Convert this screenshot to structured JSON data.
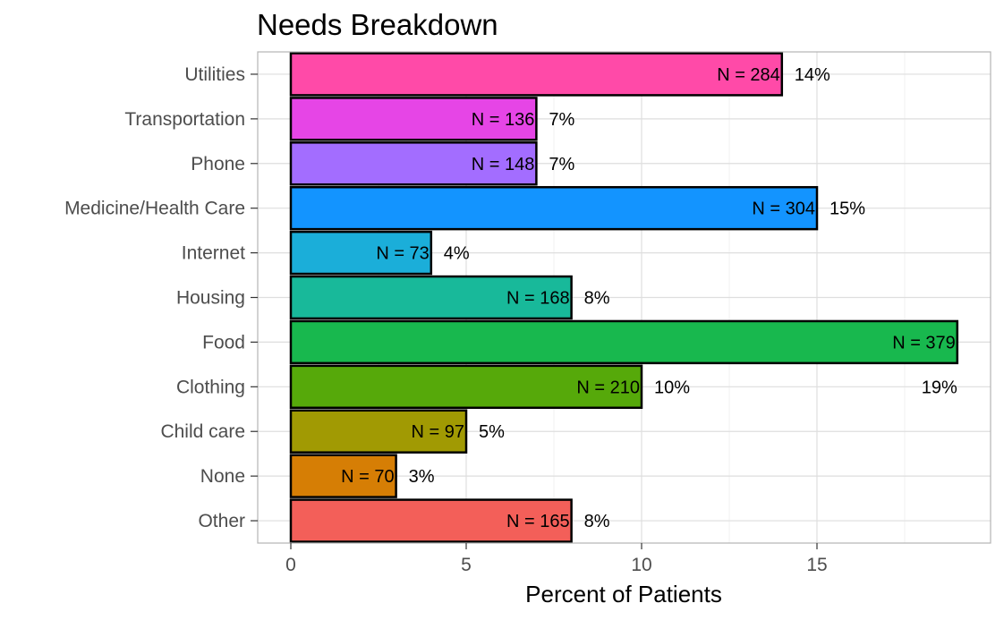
{
  "chart_data": {
    "type": "bar",
    "orientation": "horizontal",
    "title": "Needs Breakdown",
    "xlabel": "Percent of Patients",
    "ylabel": "",
    "xlim": [
      0,
      20
    ],
    "x_ticks": [
      0,
      5,
      10,
      15
    ],
    "grid": true,
    "legend": "none",
    "categories": [
      "Utilities",
      "Transportation",
      "Phone",
      "Medicine/Health Care",
      "Internet",
      "Housing",
      "Food",
      "Clothing",
      "Child care",
      "None",
      "Other"
    ],
    "values": [
      14,
      7,
      7,
      15,
      4,
      8,
      19,
      10,
      5,
      3,
      8
    ],
    "counts": [
      284,
      136,
      148,
      304,
      73,
      168,
      379,
      210,
      97,
      70,
      165
    ],
    "n_labels": [
      "N =  284",
      "N =  136",
      "N =  148",
      "N =  304",
      "N =  73",
      "N =  168",
      "N =  379",
      "N =  210",
      "N =  97",
      "N =  70",
      "N =  165"
    ],
    "pct_labels": [
      "14%",
      "7%",
      "7%",
      "15%",
      "4%",
      "8%",
      "19%",
      "10%",
      "5%",
      "3%",
      "8%"
    ],
    "colors": [
      "#FF4AA8",
      "#E645E6",
      "#A36DFF",
      "#1394FF",
      "#1BAED9",
      "#18B99A",
      "#18B84E",
      "#56A90A",
      "#A19A03",
      "#D67E05",
      "#F35F59"
    ]
  }
}
